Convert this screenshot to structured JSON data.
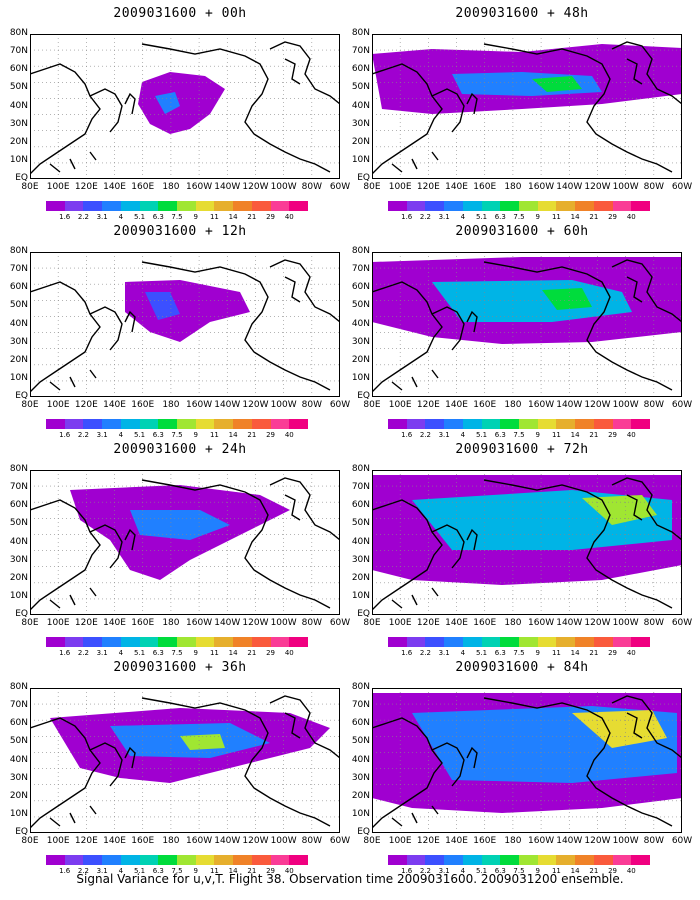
{
  "panels": [
    {
      "title": "2009031600 + 00h",
      "col": 0,
      "row": 0
    },
    {
      "title": "2009031600 + 48h",
      "col": 1,
      "row": 0
    },
    {
      "title": "2009031600 + 12h",
      "col": 0,
      "row": 1
    },
    {
      "title": "2009031600 + 60h",
      "col": 1,
      "row": 1
    },
    {
      "title": "2009031600 + 24h",
      "col": 0,
      "row": 2
    },
    {
      "title": "2009031600 + 72h",
      "col": 1,
      "row": 2
    },
    {
      "title": "2009031600 + 36h",
      "col": 0,
      "row": 3
    },
    {
      "title": "2009031600 + 84h",
      "col": 1,
      "row": 3
    }
  ],
  "lat_labels": [
    "EQ",
    "10N",
    "20N",
    "30N",
    "40N",
    "50N",
    "60N",
    "70N",
    "80N"
  ],
  "lon_labels": [
    "80E",
    "100E",
    "120E",
    "140E",
    "160E",
    "180",
    "160W",
    "140W",
    "120W",
    "100W",
    "80W",
    "60W"
  ],
  "colorbar": {
    "labels": [
      "1.6",
      "2.2",
      "3.1",
      "4",
      "5.1",
      "6.3",
      "7.5",
      "9",
      "11",
      "14",
      "21",
      "29",
      "40"
    ],
    "colors": [
      "#a000d0",
      "#7c3cf0",
      "#3c50ff",
      "#2080ff",
      "#00b4e6",
      "#00d2b4",
      "#00dc3c",
      "#a0e632",
      "#e6dc32",
      "#e6af2d",
      "#f08228",
      "#fa5a3c",
      "#fa3c96",
      "#f00080"
    ]
  },
  "caption": "Signal Variance for u,v,T. Flight 38. Observation time 2009031600. 2009031200 ensemble."
}
